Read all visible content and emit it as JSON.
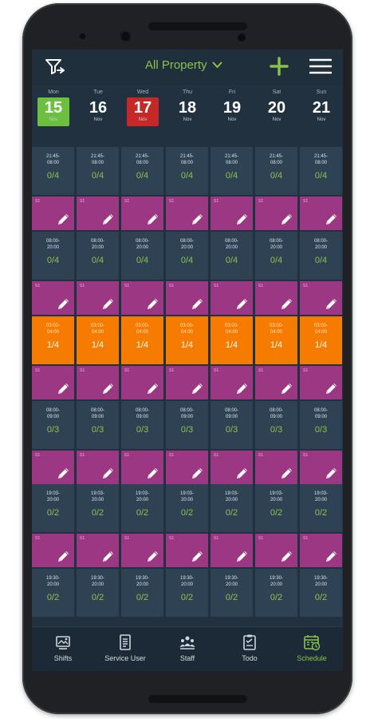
{
  "header": {
    "property_label": "All Property",
    "icons": {
      "filter": "filter-icon",
      "dropdown": "chevron-down-icon",
      "add": "plus-icon",
      "menu": "hamburger-menu-icon"
    },
    "accent_color": "#8bc34a"
  },
  "days": [
    {
      "weekday": "Mon",
      "date": "15",
      "month": "Nov",
      "state": "today"
    },
    {
      "weekday": "Tue",
      "date": "16",
      "month": "Nov",
      "state": ""
    },
    {
      "weekday": "Wed",
      "date": "17",
      "month": "Nov",
      "state": "selected"
    },
    {
      "weekday": "Thu",
      "date": "18",
      "month": "Nov",
      "state": ""
    },
    {
      "weekday": "Fri",
      "date": "19",
      "month": "Nov",
      "state": ""
    },
    {
      "weekday": "Sat",
      "date": "20",
      "month": "Nov",
      "state": ""
    },
    {
      "weekday": "Sun",
      "date": "21",
      "month": "Nov",
      "state": ""
    }
  ],
  "colors": {
    "today": "#6cbf3f",
    "selected": "#c62828",
    "shift": "#2e4254",
    "assigned": "#9c3883",
    "alert": "#f57c00"
  },
  "rows": [
    {
      "type": "shift",
      "time": "21:45-\n08:00",
      "count": "0/4",
      "status": "normal"
    },
    {
      "type": "assign",
      "tag": "S1"
    },
    {
      "type": "shift",
      "time": "08:00-\n20:00",
      "count": "0/4",
      "status": "normal"
    },
    {
      "type": "assign",
      "tag": "S1"
    },
    {
      "type": "shift",
      "time": "03:00-\n04:00",
      "count": "1/4",
      "status": "alert"
    },
    {
      "type": "assign",
      "tag": "S1"
    },
    {
      "type": "shift",
      "time": "08:00-\n09:00",
      "count": "0/3",
      "status": "normal"
    },
    {
      "type": "assign",
      "tag": "S1"
    },
    {
      "type": "shift",
      "time": "19:03-\n20:00",
      "count": "0/2",
      "status": "normal"
    },
    {
      "type": "assign",
      "tag": "S1"
    },
    {
      "type": "shift",
      "time": "19:30-\n20:00",
      "count": "0/2",
      "status": "normal"
    }
  ],
  "nav": [
    {
      "label": "Shifts",
      "icon": "shifts-icon",
      "active": false
    },
    {
      "label": "Service User",
      "icon": "service-user-icon",
      "active": false
    },
    {
      "label": "Staff",
      "icon": "staff-icon",
      "active": false
    },
    {
      "label": "Todo",
      "icon": "todo-icon",
      "active": false
    },
    {
      "label": "Schedule",
      "icon": "schedule-icon",
      "active": true
    }
  ]
}
